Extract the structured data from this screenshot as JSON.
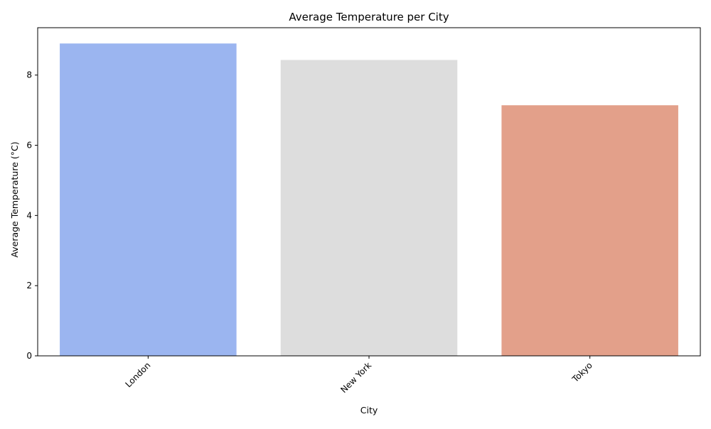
{
  "chart_data": {
    "type": "bar",
    "title": "Average Temperature per City",
    "xlabel": "City",
    "ylabel": "Average Temperature (°C)",
    "categories": [
      "London",
      "New York",
      "Tokyo"
    ],
    "values": [
      8.9,
      8.43,
      7.14
    ],
    "colors": [
      "#9bb5f0",
      "#dddddd",
      "#e3a08a"
    ],
    "ylim": [
      0,
      9.35
    ],
    "yticks": [
      0,
      2,
      4,
      6,
      8
    ],
    "ytick_labels": [
      "0",
      "2",
      "4",
      "6",
      "8"
    ],
    "x_tick_rotation_deg": 45,
    "grid": false,
    "legend": "none"
  }
}
